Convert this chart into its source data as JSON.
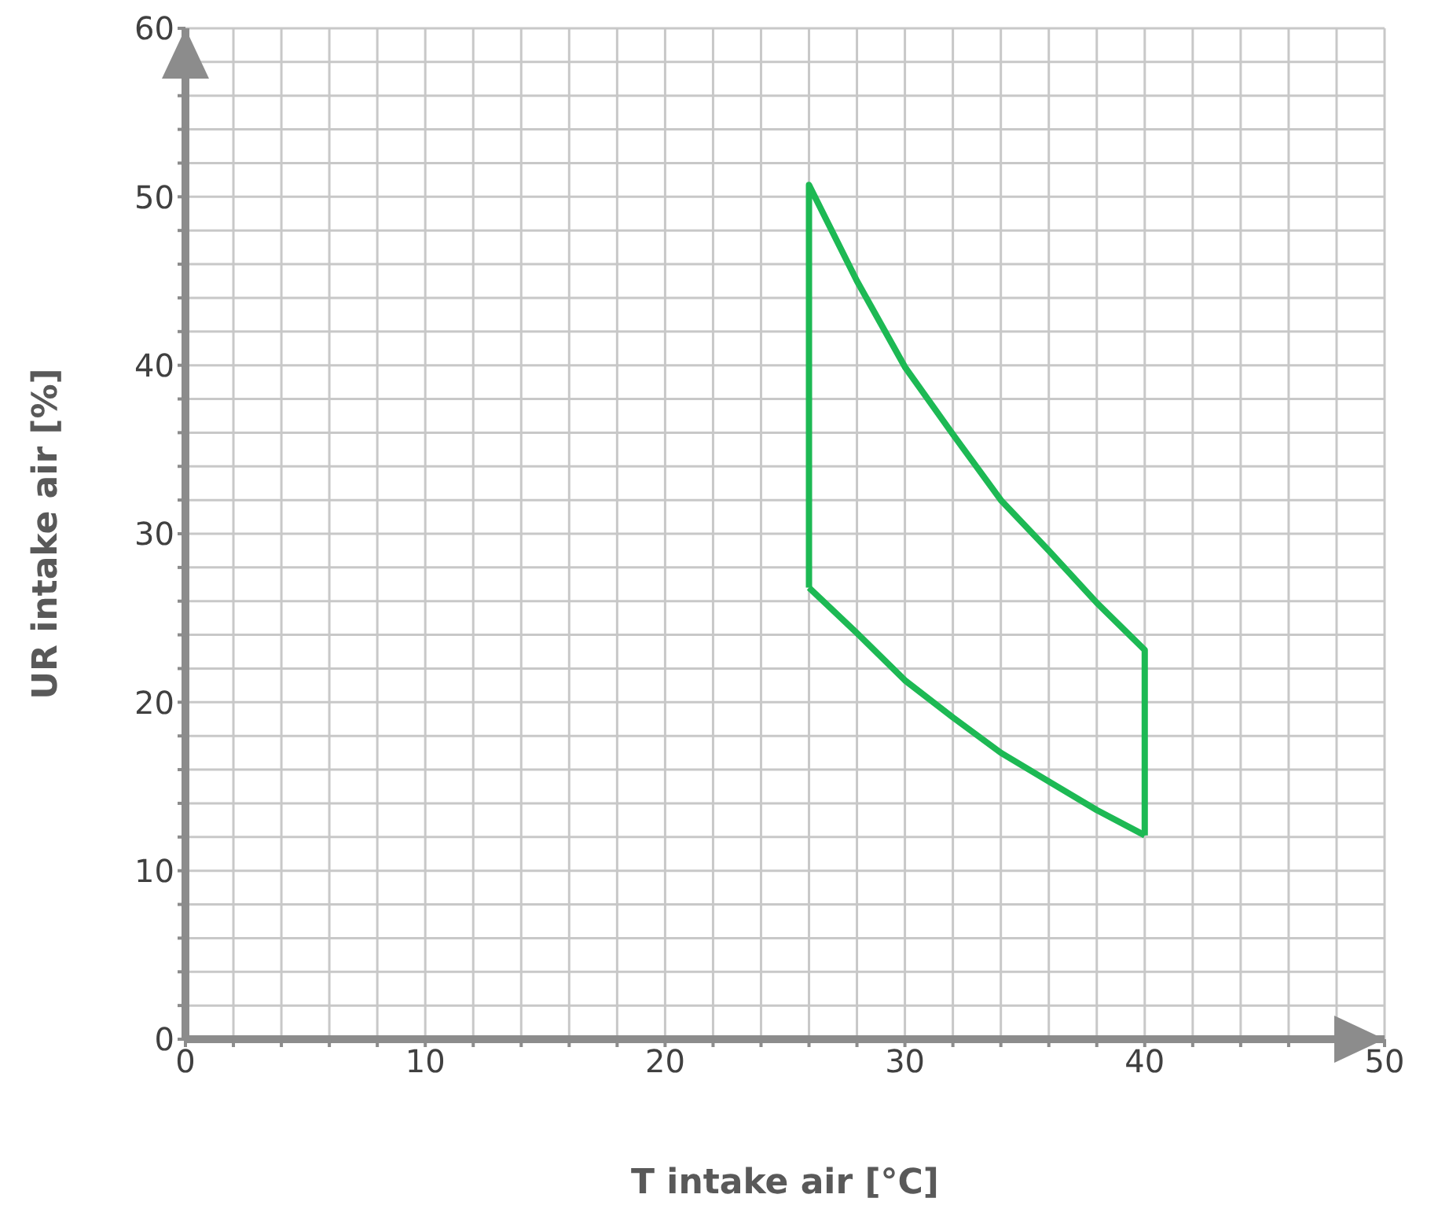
{
  "chart_data": {
    "type": "line",
    "xlabel": "T intake air [°C]",
    "ylabel": "UR intake air [%]",
    "series": [
      {
        "color": "#1db954",
        "x": [
          26,
          26,
          28,
          30,
          32,
          34,
          36,
          38,
          40,
          40
        ],
        "values": [
          26.8,
          50.7,
          45,
          39.9,
          35.9,
          32,
          29,
          25.9,
          23.1,
          12.1
        ]
      },
      {
        "color": "#1db954",
        "x": [
          26,
          28,
          30,
          32,
          34,
          36,
          38,
          40
        ],
        "values": [
          26.8,
          24.1,
          21.3,
          19.1,
          17,
          15.3,
          13.6,
          12.1
        ]
      }
    ],
    "xlim": [
      0,
      50
    ],
    "xticks": [
      0,
      {
        "value": 2,
        "label": null
      },
      {
        "value": 4,
        "label": null
      },
      {
        "value": 6,
        "label": null
      },
      {
        "value": 8,
        "label": null
      },
      10,
      {
        "value": 12,
        "label": null
      },
      {
        "value": 14,
        "label": null
      },
      {
        "value": 16,
        "label": null
      },
      {
        "value": 18,
        "label": null
      },
      20,
      {
        "value": 22,
        "label": null
      },
      {
        "value": 24,
        "label": null
      },
      {
        "value": 26,
        "label": null
      },
      {
        "value": 28,
        "label": null
      },
      30,
      {
        "value": 32,
        "label": null
      },
      {
        "value": 34,
        "label": null
      },
      {
        "value": 36,
        "label": null
      },
      {
        "value": 38,
        "label": null
      },
      40,
      {
        "value": 42,
        "label": null
      },
      {
        "value": 44,
        "label": null
      },
      {
        "value": 46,
        "label": null
      },
      {
        "value": 48,
        "label": null
      },
      50
    ],
    "ylim": [
      0,
      60
    ],
    "yticks": [
      0,
      {
        "value": 2,
        "label": null
      },
      {
        "value": 4,
        "label": null
      },
      {
        "value": 6,
        "label": null
      },
      {
        "value": 8,
        "label": null
      },
      10,
      {
        "value": 12,
        "label": null
      },
      {
        "value": 14,
        "label": null
      },
      {
        "value": 16,
        "label": null
      },
      {
        "value": 18,
        "label": null
      },
      20,
      {
        "value": 22,
        "label": null
      },
      {
        "value": 24,
        "label": null
      },
      {
        "value": 26,
        "label": null
      },
      {
        "value": 28,
        "label": null
      },
      30,
      {
        "value": 32,
        "label": null
      },
      {
        "value": 34,
        "label": null
      },
      {
        "value": 36,
        "label": null
      },
      {
        "value": 38,
        "label": null
      },
      40,
      {
        "value": 42,
        "label": null
      },
      {
        "value": 44,
        "label": null
      },
      {
        "value": 46,
        "label": null
      },
      {
        "value": 48,
        "label": null
      },
      50,
      {
        "value": 52,
        "label": null
      },
      {
        "value": 54,
        "label": null
      },
      {
        "value": 56,
        "label": null
      },
      {
        "value": 58,
        "label": null
      },
      60
    ],
    "grid": true,
    "marker": "none",
    "line_style": "solid",
    "legend": false
  }
}
